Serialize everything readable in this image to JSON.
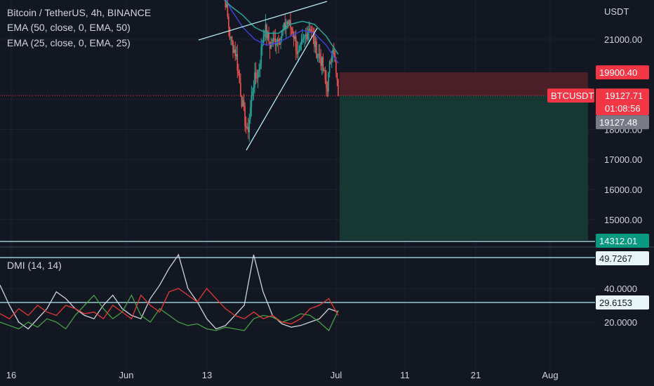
{
  "header": {
    "symbol_line": "Bitcoin / TetherUS, 4h, BINANCE",
    "ema50_label": "EMA (50, close, 0, EMA, 50)",
    "ema25_label": "EMA (25, close, 0, EMA, 25)",
    "dmi_label": "DMI (14, 14)"
  },
  "colors": {
    "background": "#131722",
    "grid": "#1e222d",
    "candle_up": "#26a69a",
    "candle_down": "#ef5350",
    "ema50": "#3d3fd1",
    "ema25": "#26a69a",
    "trendline": "#b2ebf2",
    "stop_zone": "#4a1f28",
    "target_zone": "#173733",
    "price_badge": "#f23645",
    "target_badge": "#089981",
    "dmi_plus": "#43a047",
    "dmi_minus": "#e53935",
    "adx": "#d1d4dc"
  },
  "chart_data": [
    {
      "type": "candlestick",
      "title": "Bitcoin / TetherUS, 4h, BINANCE",
      "price_unit": "USDT",
      "ylim": [
        14000,
        23000
      ],
      "y_ticks": [
        15000,
        16000,
        17000,
        18000,
        19000,
        21000
      ],
      "y_tick_labels": [
        "15000.00",
        "16000.00",
        "17000.00",
        "18000.00",
        "",
        "21000.00"
      ],
      "x_tick_labels": [
        "16",
        "Jun",
        "13",
        "Jul",
        "11",
        "21",
        "Aug"
      ],
      "series": [
        {
          "name": "EMA (50, close, 0, EMA, 50)",
          "values": [
            22800,
            22000,
            21400,
            21000,
            20800,
            20900,
            21100,
            21300,
            21200,
            20800,
            20200
          ]
        },
        {
          "name": "EMA (25, close, 0, EMA, 25)",
          "values": [
            22500,
            22100,
            21800,
            21400,
            21200,
            21200,
            21500,
            21600,
            21500,
            21100,
            20500
          ]
        }
      ],
      "price_path": [
        24000,
        22500,
        21000,
        20500,
        19000,
        17800,
        19500,
        20000,
        21400,
        20800,
        21000,
        21100,
        21600,
        21300,
        20400,
        21000,
        21500,
        20700,
        20300,
        19300,
        20900,
        19130
      ],
      "levels": {
        "last_price": 19127.71,
        "last_price_label": "19127.71",
        "countdown": "01:08:56",
        "symbol_badge": "BTCUSDT",
        "stop_level": 19900.4,
        "stop_label": "19900.40",
        "bid_label": "19127.48",
        "target_level": 14312.01,
        "target_label": "14312.01"
      }
    },
    {
      "type": "line",
      "title": "DMI (14, 14)",
      "ylim": [
        13,
        52
      ],
      "y_tick_labels": [
        "40.0000",
        "20.0000"
      ],
      "levels": {
        "upper_label": "49.7267",
        "lower_label": "29.6153"
      },
      "series": [
        {
          "name": "ADX",
          "values": [
            42,
            30,
            20,
            16,
            22,
            28,
            38,
            34,
            28,
            24,
            22,
            30,
            36,
            28,
            24,
            22,
            34,
            42,
            52,
            60,
            40,
            32,
            22,
            16,
            18,
            24,
            30,
            60,
            38,
            24,
            19,
            17,
            18,
            20,
            22,
            28,
            26
          ]
        },
        {
          "name": "DI+",
          "values": [
            20,
            18,
            16,
            20,
            17,
            22,
            20,
            16,
            24,
            30,
            36,
            28,
            22,
            26,
            36,
            24,
            20,
            28,
            24,
            20,
            18,
            19,
            16,
            15,
            17,
            16,
            15,
            22,
            24,
            23,
            20,
            22,
            25,
            24,
            20,
            15,
            27
          ]
        },
        {
          "name": "DI-",
          "values": [
            25,
            22,
            28,
            24,
            30,
            26,
            24,
            30,
            28,
            25,
            26,
            22,
            30,
            26,
            22,
            36,
            30,
            26,
            38,
            40,
            36,
            32,
            40,
            34,
            28,
            24,
            22,
            26,
            22,
            24,
            20,
            19,
            22,
            28,
            30,
            34,
            24
          ]
        }
      ]
    }
  ]
}
